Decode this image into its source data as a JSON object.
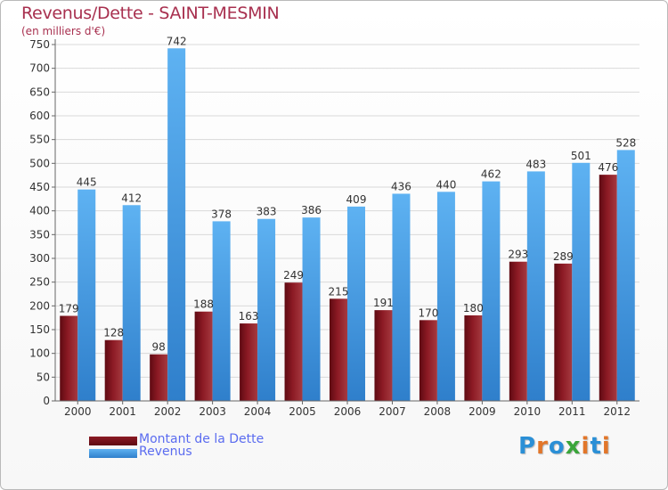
{
  "title": "Revenus/Dette - SAINT-MESMIN",
  "subtitle": "(en milliers d'€)",
  "brand": {
    "text": "Proxiti",
    "letter_colors": [
      "#2a8fd6",
      "#e2762a",
      "#2a8fd6",
      "#3aa53a",
      "#e2762a",
      "#2a8fd6",
      "#e2762a"
    ]
  },
  "colors": {
    "debt": "#8c1a24",
    "debt_dark": "#5e0a12",
    "revenue": "#5aaef0",
    "revenue_dark": "#2a7ac8",
    "axis_text": "#333333",
    "grid": "#d9d9d9"
  },
  "legend": [
    {
      "key": "debt",
      "label": "Montant de la Dette"
    },
    {
      "key": "revenue",
      "label": "Revenus"
    }
  ],
  "chart_data": {
    "type": "bar",
    "title": "Revenus/Dette - SAINT-MESMIN",
    "ylabel": "(en milliers d'€)",
    "xlabel": "",
    "ylim": [
      0,
      750
    ],
    "yticks": [
      0,
      50,
      100,
      150,
      200,
      250,
      300,
      350,
      400,
      450,
      500,
      550,
      600,
      650,
      700,
      750
    ],
    "grid": true,
    "categories": [
      "2000",
      "2001",
      "2002",
      "2003",
      "2004",
      "2005",
      "2006",
      "2007",
      "2008",
      "2009",
      "2010",
      "2011",
      "2012"
    ],
    "series": [
      {
        "name": "Montant de la Dette",
        "key": "debt",
        "values": [
          179,
          128,
          98,
          188,
          163,
          249,
          215,
          191,
          170,
          180,
          293,
          289,
          476
        ]
      },
      {
        "name": "Revenus",
        "key": "revenue",
        "values": [
          445,
          412,
          742,
          378,
          383,
          386,
          409,
          436,
          440,
          462,
          483,
          501,
          528
        ]
      }
    ]
  }
}
